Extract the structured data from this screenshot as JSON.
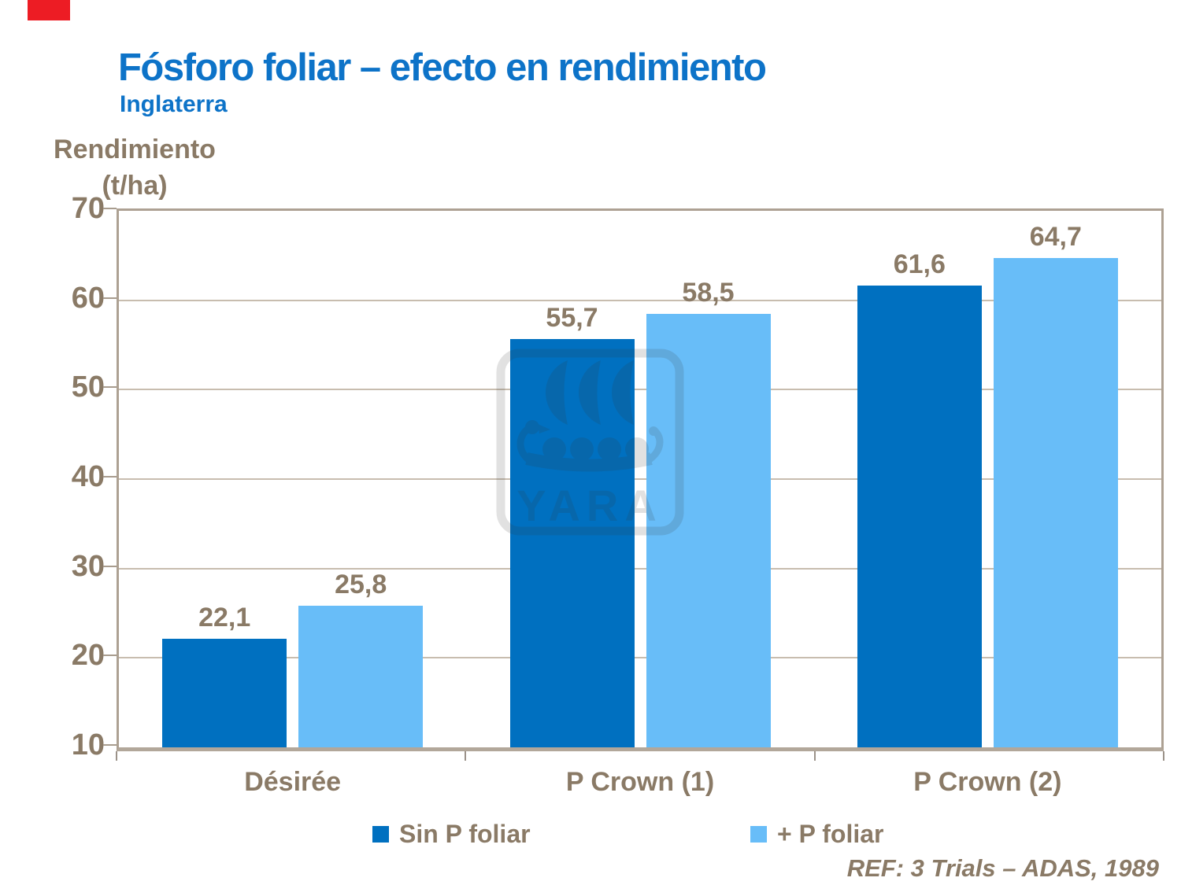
{
  "header": {
    "title": "Fósforo foliar – efecto en rendimiento",
    "subtitle": "Inglaterra"
  },
  "y_axis_title": {
    "line1": "Rendimiento",
    "line2": "(t/ha)"
  },
  "footer": {
    "reference": "REF: 3 Trials – ADAS, 1989"
  },
  "watermark": {
    "text": "YARA",
    "icon": "yara-viking-ship-logo"
  },
  "palette": {
    "title_blue": "#0D73C8",
    "taupe_text": "#8A7A66",
    "bar_dark_blue": "#0070C0",
    "bar_light_blue": "#68BDF8",
    "gridline": "#C8BDAF",
    "frame_border": "#ADA193",
    "axis_band": "#B2A79A",
    "y_tick": "#A89C8E",
    "x_tick": "#9B9289",
    "watermark_gray": "#333333",
    "brand_red": "#ED1C24"
  },
  "chart_data": {
    "type": "bar",
    "title": "Fósforo foliar – efecto en rendimiento, Inglaterra",
    "xlabel": "",
    "ylabel": "Rendimiento (t/ha)",
    "categories": [
      "Désirée",
      "P Crown (1)",
      "P Crown (2)"
    ],
    "series": [
      {
        "name": "Sin P foliar",
        "color": "#0070C0",
        "values": [
          22.1,
          55.7,
          61.6
        ],
        "labels": [
          "22,1",
          "55,7",
          "61,6"
        ]
      },
      {
        "name": "+ P foliar",
        "color": "#68BDF8",
        "values": [
          25.8,
          58.5,
          64.7
        ],
        "labels": [
          "25,8",
          "58,5",
          "64,7"
        ]
      }
    ],
    "ylim": [
      10,
      70
    ],
    "y_ticks": [
      10,
      20,
      30,
      40,
      50,
      60,
      70
    ],
    "grid": true,
    "legend_position": "bottom",
    "annotation": "REF: 3 Trials – ADAS, 1989"
  }
}
